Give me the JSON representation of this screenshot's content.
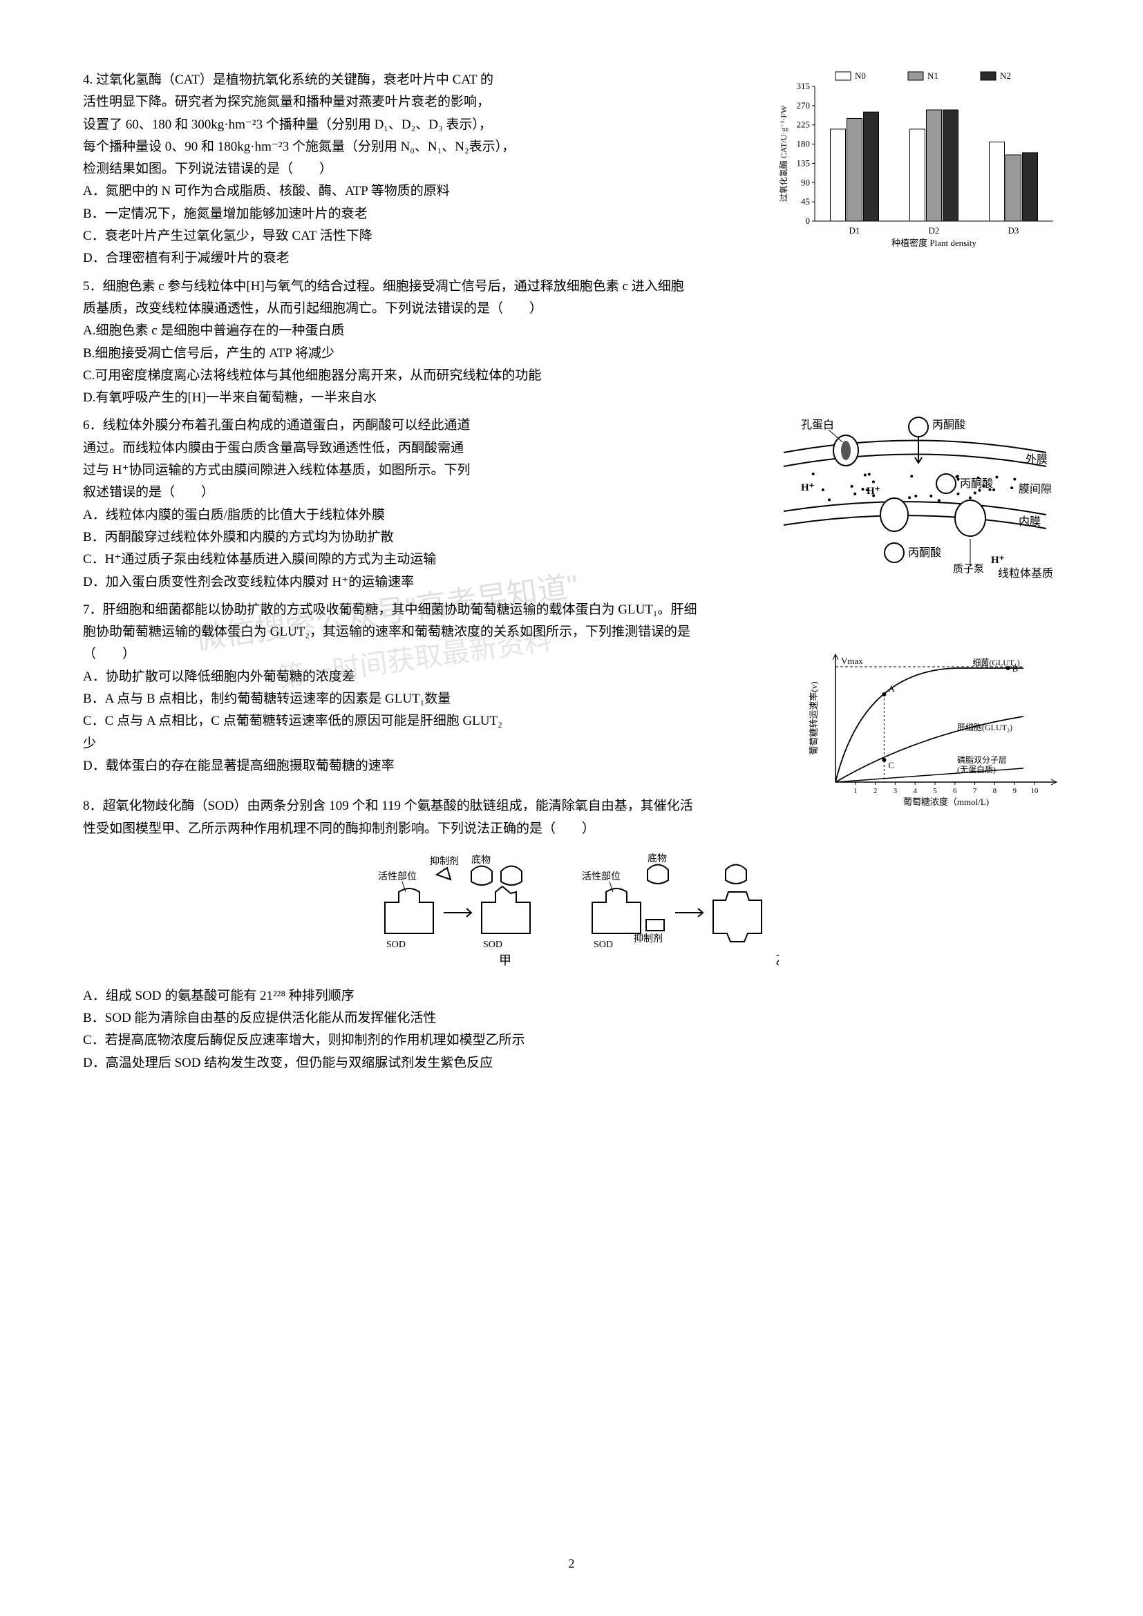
{
  "page_number": "2",
  "watermark1": "微信搜索公众号\"高考早知道\"",
  "watermark2": "第一时间获取最新资料",
  "q4": {
    "stem1": "4. 过氧化氢酶（CAT）是植物抗氧化系统的关键酶，衰老叶片中 CAT 的",
    "stem2": "活性明显下降。研究者为探究施氮量和播种量对燕麦叶片衰老的影响，",
    "stem3": "设置了 60、180 和 300kg·hm⁻²3 个播种量（分别用 D₁、D₂、D₃ 表示），",
    "stem4": "每个播种量设 0、90 和 180kg·hm⁻²3 个施氮量（分别用 N₀、N₁、N₂表示），",
    "stem5": "检测结果如图。下列说法错误的是（　　）",
    "optA": "A．氮肥中的 N 可作为合成脂质、核酸、酶、ATP 等物质的原料",
    "optB": "B．一定情况下，施氮量增加能够加速叶片的衰老",
    "optC": "C．衰老叶片产生过氧化氢少，导致 CAT 活性下降",
    "optD": "D．合理密植有利于减缓叶片的衰老",
    "chart": {
      "type": "bar",
      "ylabel": "过氧化氢酶 CAT/U·g⁻¹·FW",
      "xlabel": "种植密度 Plant density",
      "categories": [
        "D1",
        "D2",
        "D3"
      ],
      "legend": [
        "N0",
        "N1",
        "N2"
      ],
      "legend_colors": [
        "#ffffff",
        "#9a9a9a",
        "#2b2b2b"
      ],
      "values": {
        "D1": [
          215,
          240,
          255
        ],
        "D2": [
          215,
          260,
          260
        ],
        "D3": [
          185,
          155,
          160
        ]
      },
      "ylim": [
        0,
        315
      ],
      "yticks": [
        0,
        45,
        90,
        135,
        180,
        225,
        270,
        315
      ],
      "bar_border": "#000",
      "bg": "#ffffff",
      "fontsize_axis": 13
    }
  },
  "q5": {
    "stem1": "5．细胞色素 c 参与线粒体中[H]与氧气的结合过程。细胞接受凋亡信号后，通过释放细胞色素 c 进入细胞",
    "stem2": "质基质，改变线粒体膜通透性，从而引起细胞凋亡。下列说法错误的是（　　）",
    "optA": "A.细胞色素 c 是细胞中普遍存在的一种蛋白质",
    "optB": "B.细胞接受凋亡信号后，产生的 ATP 将减少",
    "optC": "C.可用密度梯度离心法将线粒体与其他细胞器分离开来，从而研究线粒体的功能",
    "optD": "D.有氧呼吸产生的[H]一半来自葡萄糖，一半来自水"
  },
  "q6": {
    "stem1": "6．线粒体外膜分布着孔蛋白构成的通道蛋白，丙酮酸可以经此通道",
    "stem2": "通过。而线粒体内膜由于蛋白质含量高导致通透性低，丙酮酸需通",
    "stem3": "过与 H⁺协同运输的方式由膜间隙进入线粒体基质，如图所示。下列",
    "stem4": "叙述错误的是（　　）",
    "optA": "A．线粒体内膜的蛋白质/脂质的比值大于线粒体外膜",
    "optB": "B．丙酮酸穿过线粒体外膜和内膜的方式均为协助扩散",
    "optC": "C．H⁺通过质子泵由线粒体基质进入膜间隙的方式为主动运输",
    "optD": "D．加入蛋白质变性剂会改变线粒体内膜对 H⁺的运输速率",
    "diagram": {
      "labels": [
        "孔蛋白",
        "丙酮酸",
        "外膜",
        "膜间隙",
        "丙酮酸",
        "H⁺",
        "H⁺",
        "内膜",
        "丙酮酸",
        "质子泵",
        "H⁺",
        "线粒体基质"
      ]
    }
  },
  "q7": {
    "stem1": "7．肝细胞和细菌都能以协助扩散的方式吸收葡萄糖，其中细菌协助葡萄糖运输的载体蛋白为 GLUT₁。肝细",
    "stem2": "胞协助葡萄糖运输的载体蛋白为 GLUT₂，其运输的速率和葡萄糖浓度的关系如图所示，下列推测错误的是",
    "stem3": "（　　）",
    "optA": "A．协助扩散可以降低细胞内外葡萄糖的浓度差",
    "optB": "B．A 点与 B 点相比，制约葡萄糖转运速率的因素是 GLUT₁数量",
    "optC": "C．C 点与 A 点相比，C 点葡萄糖转运速率低的原因可能是肝细胞 GLUT₂",
    "optC2": "少",
    "optD": "D．载体蛋白的存在能显著提高细胞摄取葡萄糖的速率",
    "chart": {
      "type": "line",
      "xlabel": "葡萄糖浓度（mmol/L)",
      "ylabel": "葡萄糖转运速率(v)",
      "vmax_label": "Vmax",
      "curves": [
        "细菌(GLUT₁)",
        "肝细胞(GLUT₂)",
        "磷脂双分子层(无蛋白质)"
      ],
      "points": [
        "A",
        "B",
        "C"
      ],
      "xticks": [
        1,
        2,
        3,
        4,
        5,
        6,
        7,
        8,
        9,
        10
      ],
      "curve_color": "#000",
      "bg": "#ffffff"
    }
  },
  "q8": {
    "stem1": "8．超氧化物歧化酶（SOD）由两条分别含 109 个和 119 个氨基酸的肽链组成，能清除氧自由基，其催化活",
    "stem2": "性受如图模型甲、乙所示两种作用机理不同的酶抑制剂影响。下列说法正确的是（　　）",
    "optA": "A．组成 SOD 的氨基酸可能有 21²²⁸ 种排列顺序",
    "optB": "B．SOD 能为清除自由基的反应提供活化能从而发挥催化活性",
    "optC": "C．若提高底物浓度后酶促反应速率增大，则抑制剂的作用机理如模型乙所示",
    "optD": "D．高温处理后 SOD 结构发生改变，但仍能与双缩脲试剂发生紫色反应",
    "diagram": {
      "labels": [
        "抑制剂",
        "底物",
        "活性部位",
        "SOD",
        "甲",
        "活性部位",
        "底物",
        "抑制剂",
        "SOD",
        "乙"
      ]
    }
  }
}
